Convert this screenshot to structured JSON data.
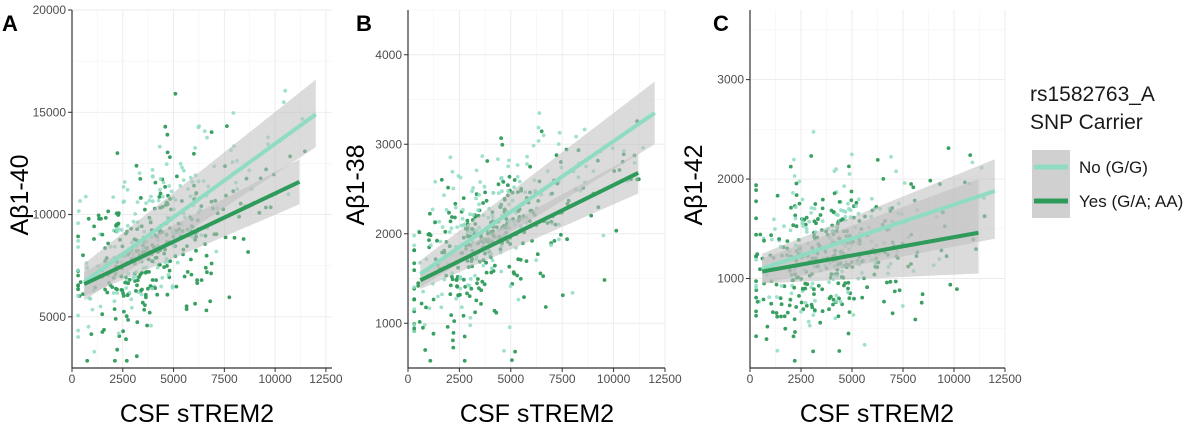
{
  "colors": {
    "no": "#8fdcc3",
    "yes": "#2e9b5a",
    "band": "#bdbdbd",
    "grid": "#ebebeb",
    "axis": "#333333"
  },
  "legend": {
    "title_line1": "rs1582763_A",
    "title_line2": "SNP Carrier",
    "entries": [
      {
        "key": "no",
        "label": "No (G/G)"
      },
      {
        "key": "yes",
        "label": "Yes (G/A; AA)"
      }
    ]
  },
  "chart_data": [
    {
      "type": "scatter",
      "panel": "A",
      "xlabel": "CSF sTREM2",
      "ylabel": "Aβ1-40",
      "xlim": [
        0,
        12800
      ],
      "ylim": [
        2500,
        20000
      ],
      "xticks": [
        0,
        2500,
        5000,
        7500,
        10000,
        12500
      ],
      "yticks": [
        5000,
        10000,
        15000,
        20000
      ],
      "series": [
        {
          "name": "No (G/G)",
          "key": "no",
          "fit": {
            "x": [
              600,
              12000
            ],
            "y": [
              6700,
              14900
            ]
          },
          "band": {
            "x": [
              600,
              12000
            ],
            "lower": [
              5800,
              13300
            ],
            "upper": [
              7600,
              16600
            ]
          }
        },
        {
          "name": "Yes (G/A; AA)",
          "key": "yes",
          "fit": {
            "x": [
              600,
              11200
            ],
            "y": [
              6600,
              11600
            ]
          },
          "band": {
            "x": [
              600,
              11200
            ],
            "lower": [
              6000,
              10500
            ],
            "upper": [
              7200,
              12700
            ]
          }
        }
      ],
      "points_note": "n≈500 per panel",
      "seed": 11
    },
    {
      "type": "scatter",
      "panel": "B",
      "xlabel": "CSF sTREM2",
      "ylabel": "Aβ1-38",
      "xlim": [
        0,
        12500
      ],
      "ylim": [
        500,
        4500
      ],
      "xticks": [
        0,
        2500,
        5000,
        7500,
        10000,
        12500
      ],
      "yticks": [
        1000,
        2000,
        3000,
        4000
      ],
      "series": [
        {
          "name": "No (G/G)",
          "key": "no",
          "fit": {
            "x": [
              600,
              12000
            ],
            "y": [
              1550,
              3350
            ]
          },
          "band": {
            "x": [
              600,
              12000
            ],
            "lower": [
              1400,
              3000
            ],
            "upper": [
              1700,
              3700
            ]
          }
        },
        {
          "name": "Yes (G/A; AA)",
          "key": "yes",
          "fit": {
            "x": [
              600,
              11200
            ],
            "y": [
              1480,
              2680
            ]
          },
          "band": {
            "x": [
              600,
              11200
            ],
            "lower": [
              1380,
              2450
            ],
            "upper": [
              1580,
              2900
            ]
          }
        }
      ],
      "seed": 23
    },
    {
      "type": "scatter",
      "panel": "C",
      "xlabel": "CSF sTREM2",
      "ylabel": "Aβ1-42",
      "xlim": [
        0,
        12500
      ],
      "ylim": [
        100,
        3700
      ],
      "xticks": [
        0,
        2500,
        5000,
        7500,
        10000,
        12500
      ],
      "yticks": [
        1000,
        2000,
        3000
      ],
      "series": [
        {
          "name": "No (G/G)",
          "key": "no",
          "fit": {
            "x": [
              600,
              12000
            ],
            "y": [
              1100,
              1880
            ]
          },
          "band": {
            "x": [
              600,
              12000
            ],
            "lower": [
              950,
              1400
            ],
            "upper": [
              1250,
              2200
            ]
          }
        },
        {
          "name": "Yes (G/A; AA)",
          "key": "yes",
          "fit": {
            "x": [
              600,
              11200
            ],
            "y": [
              1070,
              1460
            ]
          },
          "band": {
            "x": [
              600,
              11200
            ],
            "lower": [
              950,
              1050
            ],
            "upper": [
              1200,
              2000
            ]
          }
        }
      ],
      "seed": 37
    }
  ]
}
